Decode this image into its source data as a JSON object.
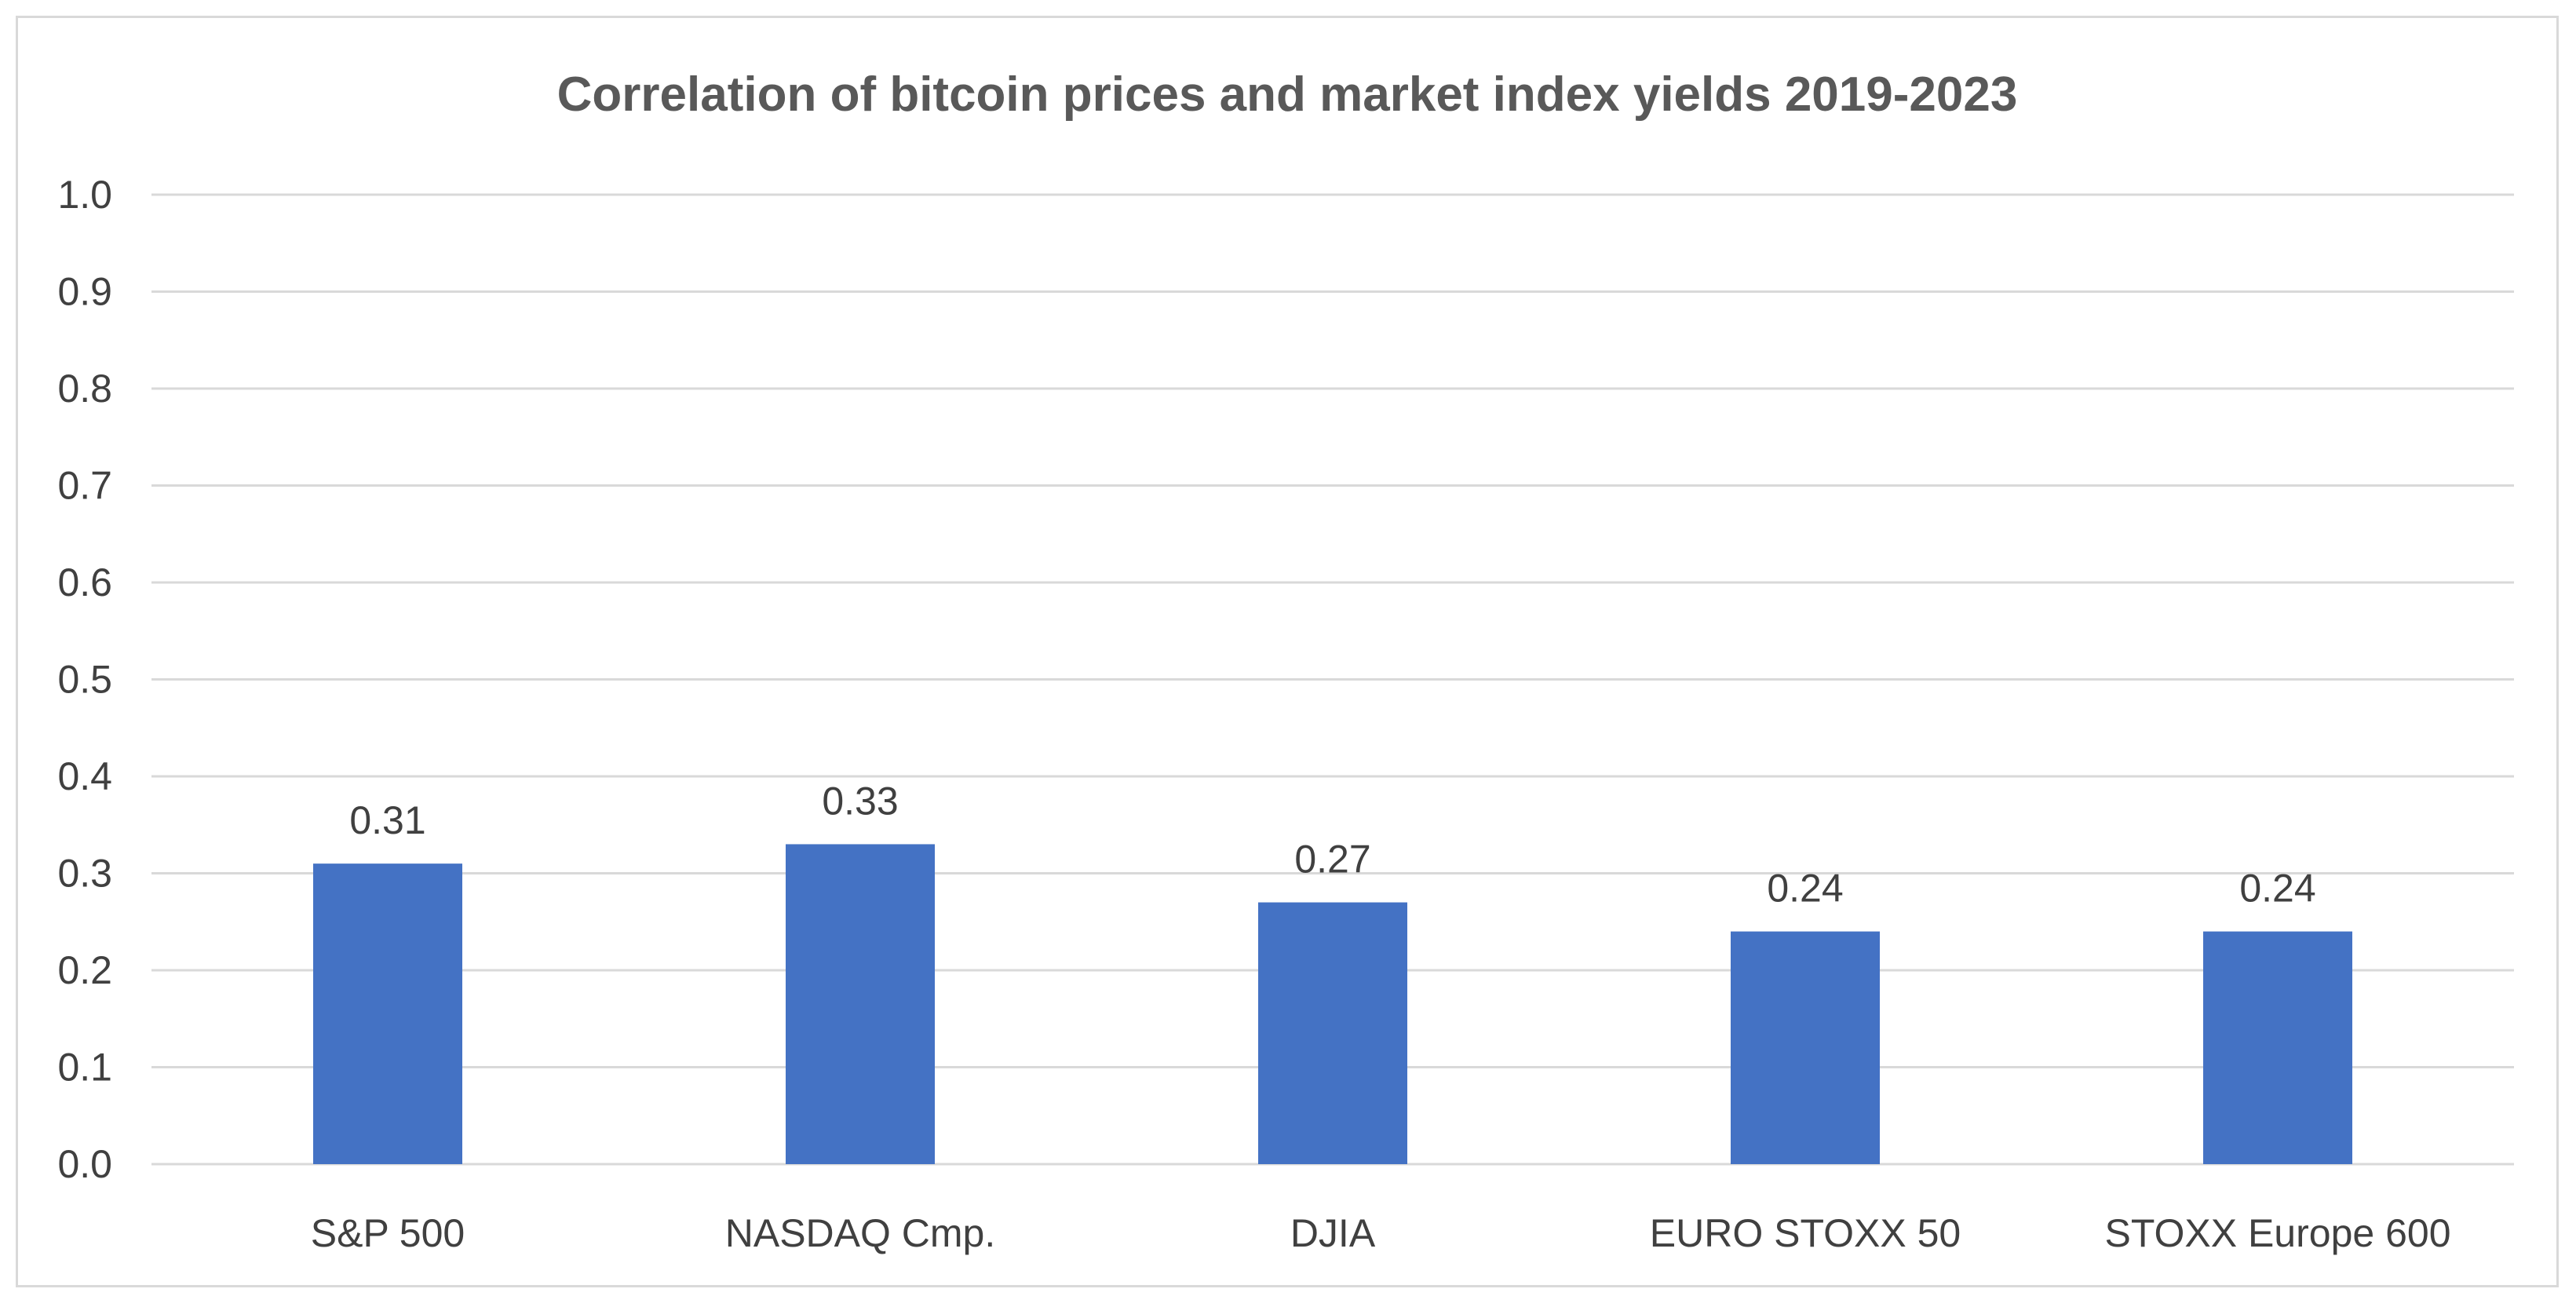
{
  "chart_data": {
    "type": "bar",
    "title": "Correlation of bitcoin prices and market index yields 2019-2023",
    "xlabel": "",
    "ylabel": "",
    "categories": [
      "S&P 500",
      "NASDAQ Cmp.",
      "DJIA",
      "EURO STOXX 50",
      "STOXX Europe 600"
    ],
    "values": [
      0.31,
      0.33,
      0.27,
      0.24,
      0.24
    ],
    "data_labels": [
      "0.31",
      "0.33",
      "0.27",
      "0.24",
      "0.24"
    ],
    "ylim": [
      0,
      1.0
    ],
    "yticks": [
      "0.0",
      "0.1",
      "0.2",
      "0.3",
      "0.4",
      "0.5",
      "0.6",
      "0.7",
      "0.8",
      "0.9",
      "1.0"
    ],
    "grid": true,
    "legend": "none",
    "colors": {
      "bar": "#4472c4",
      "grid": "#d9d9d9"
    }
  }
}
